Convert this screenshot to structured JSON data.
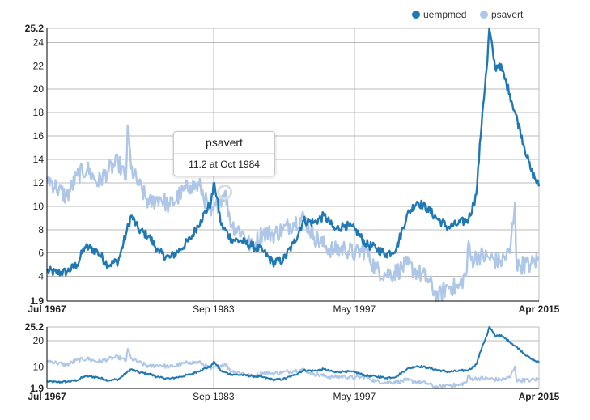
{
  "chart_data": {
    "type": "line",
    "x_ticks": [
      "Jul 1967",
      "Sep 1983",
      "May 1997",
      "Apr 2015"
    ],
    "main_y_ticks": [
      "1.9",
      "4",
      "6",
      "8",
      "10",
      "12",
      "14",
      "16",
      "18",
      "20",
      "22",
      "24",
      "25.2"
    ],
    "context_y_ticks": [
      "1.9",
      "10",
      "20",
      "25.2"
    ],
    "ylim": [
      1.9,
      25.2
    ],
    "grid": true,
    "legend_position": "top-right",
    "series": [
      {
        "name": "uempmed",
        "color": "#1f77b4",
        "points": [
          [
            "1967-07",
            4.5
          ],
          [
            "1968-06",
            4.3
          ],
          [
            "1969-06",
            4.4
          ],
          [
            "1970-06",
            5.0
          ],
          [
            "1971-03",
            6.5
          ],
          [
            "1971-10",
            6.4
          ],
          [
            "1972-06",
            6.1
          ],
          [
            "1973-06",
            5.0
          ],
          [
            "1974-06",
            5.3
          ],
          [
            "1975-03",
            7.6
          ],
          [
            "1975-09",
            9.2
          ],
          [
            "1976-06",
            8.0
          ],
          [
            "1977-06",
            7.4
          ],
          [
            "1978-06",
            6.0
          ],
          [
            "1979-06",
            5.6
          ],
          [
            "1980-06",
            6.3
          ],
          [
            "1981-06",
            7.2
          ],
          [
            "1982-06",
            8.8
          ],
          [
            "1983-06",
            10.3
          ],
          [
            "1983-10",
            12.0
          ],
          [
            "1984-06",
            8.4
          ],
          [
            "1985-06",
            7.2
          ],
          [
            "1986-06",
            7.0
          ],
          [
            "1987-06",
            6.6
          ],
          [
            "1988-06",
            6.2
          ],
          [
            "1989-06",
            5.2
          ],
          [
            "1990-06",
            5.4
          ],
          [
            "1991-06",
            6.8
          ],
          [
            "1992-06",
            8.8
          ],
          [
            "1993-06",
            8.6
          ],
          [
            "1994-06",
            9.2
          ],
          [
            "1995-06",
            8.0
          ],
          [
            "1996-06",
            8.4
          ],
          [
            "1997-06",
            8.0
          ],
          [
            "1998-06",
            6.8
          ],
          [
            "1999-06",
            6.4
          ],
          [
            "2000-06",
            5.9
          ],
          [
            "2001-06",
            6.4
          ],
          [
            "2002-06",
            9.2
          ],
          [
            "2003-06",
            10.4
          ],
          [
            "2004-06",
            9.8
          ],
          [
            "2005-06",
            8.9
          ],
          [
            "2006-06",
            8.2
          ],
          [
            "2007-06",
            8.5
          ],
          [
            "2008-06",
            8.9
          ],
          [
            "2009-03",
            11.0
          ],
          [
            "2009-10",
            18.0
          ],
          [
            "2010-04",
            22.5
          ],
          [
            "2010-06",
            25.2
          ],
          [
            "2011-01",
            21.8
          ],
          [
            "2011-06",
            22.2
          ],
          [
            "2012-06",
            19.6
          ],
          [
            "2013-06",
            16.5
          ],
          [
            "2014-06",
            13.2
          ],
          [
            "2015-04",
            11.7
          ]
        ]
      },
      {
        "name": "psavert",
        "color": "#aec7e8",
        "points": [
          [
            "1967-07",
            12.5
          ],
          [
            "1968-06",
            11.6
          ],
          [
            "1969-06",
            10.8
          ],
          [
            "1970-06",
            12.6
          ],
          [
            "1971-06",
            13.2
          ],
          [
            "1972-06",
            12.0
          ],
          [
            "1973-06",
            13.0
          ],
          [
            "1974-06",
            13.8
          ],
          [
            "1975-03",
            12.3
          ],
          [
            "1975-05",
            16.9
          ],
          [
            "1975-09",
            13.2
          ],
          [
            "1976-06",
            11.8
          ],
          [
            "1977-06",
            10.2
          ],
          [
            "1978-06",
            10.8
          ],
          [
            "1979-06",
            10.0
          ],
          [
            "1980-06",
            11.0
          ],
          [
            "1981-06",
            11.8
          ],
          [
            "1982-06",
            11.6
          ],
          [
            "1983-06",
            9.2
          ],
          [
            "1984-10",
            11.2
          ],
          [
            "1985-06",
            8.4
          ],
          [
            "1986-06",
            7.8
          ],
          [
            "1987-06",
            6.4
          ],
          [
            "1988-06",
            7.8
          ],
          [
            "1989-06",
            7.6
          ],
          [
            "1990-06",
            8.0
          ],
          [
            "1991-06",
            8.6
          ],
          [
            "1992-06",
            9.0
          ],
          [
            "1993-06",
            7.4
          ],
          [
            "1994-06",
            6.6
          ],
          [
            "1995-06",
            6.2
          ],
          [
            "1996-06",
            6.4
          ],
          [
            "1997-06",
            5.9
          ],
          [
            "1998-06",
            6.3
          ],
          [
            "1999-06",
            4.6
          ],
          [
            "2000-06",
            4.2
          ],
          [
            "2001-06",
            4.4
          ],
          [
            "2002-06",
            5.0
          ],
          [
            "2003-06",
            4.4
          ],
          [
            "2004-06",
            3.8
          ],
          [
            "2005-06",
            2.2
          ],
          [
            "2006-06",
            3.2
          ],
          [
            "2007-06",
            3.0
          ],
          [
            "2008-04",
            4.4
          ],
          [
            "2008-06",
            7.0
          ],
          [
            "2008-09",
            5.4
          ],
          [
            "2009-06",
            5.8
          ],
          [
            "2010-06",
            5.6
          ],
          [
            "2011-06",
            5.2
          ],
          [
            "2012-06",
            6.0
          ],
          [
            "2012-12",
            10.3
          ],
          [
            "2013-02",
            4.6
          ],
          [
            "2013-06",
            5.0
          ],
          [
            "2014-06",
            5.0
          ],
          [
            "2015-04",
            5.5
          ]
        ]
      }
    ],
    "tooltip": {
      "title": "psavert",
      "text": "11.2 at Oct 1984",
      "point": [
        "1984-10",
        11.2
      ]
    }
  }
}
